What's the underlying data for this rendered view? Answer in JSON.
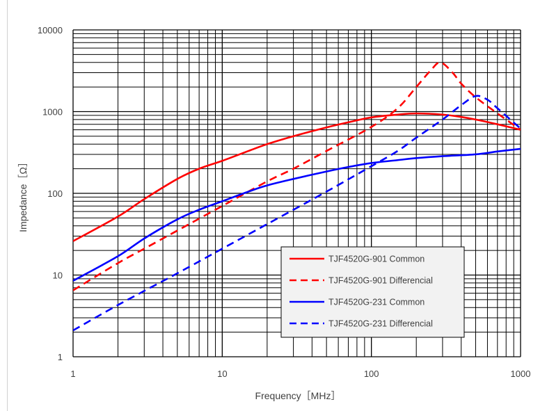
{
  "chart_data": {
    "type": "line",
    "xscale": "log",
    "yscale": "log",
    "xlim": [
      1,
      1000
    ],
    "ylim": [
      1,
      10000
    ],
    "xlabel": "Frequency［MHz］",
    "ylabel": "Impedance［Ω］",
    "x_ticks": [
      "1",
      "10",
      "100",
      "1000"
    ],
    "y_ticks": [
      "1",
      "10",
      "100",
      "1000",
      "10000"
    ],
    "grid": true,
    "legend_position": "bottom-right",
    "series": [
      {
        "name": "TJF4520G-901 Common",
        "color": "#ff0000",
        "dash": "solid",
        "points": [
          [
            1,
            26
          ],
          [
            2,
            52
          ],
          [
            3,
            85
          ],
          [
            5,
            150
          ],
          [
            7,
            200
          ],
          [
            10,
            250
          ],
          [
            15,
            330
          ],
          [
            20,
            400
          ],
          [
            30,
            500
          ],
          [
            50,
            640
          ],
          [
            70,
            740
          ],
          [
            100,
            850
          ],
          [
            150,
            920
          ],
          [
            200,
            950
          ],
          [
            300,
            920
          ],
          [
            400,
            860
          ],
          [
            500,
            800
          ],
          [
            700,
            700
          ],
          [
            1000,
            600
          ]
        ]
      },
      {
        "name": "TJF4520G-901 Differencial",
        "color": "#ff0000",
        "dash": "dashed",
        "points": [
          [
            1,
            6.5
          ],
          [
            2,
            14
          ],
          [
            3,
            21
          ],
          [
            5,
            35
          ],
          [
            10,
            70
          ],
          [
            20,
            140
          ],
          [
            30,
            200
          ],
          [
            50,
            330
          ],
          [
            100,
            650
          ],
          [
            150,
            1100
          ],
          [
            200,
            2000
          ],
          [
            250,
            3200
          ],
          [
            290,
            4000
          ],
          [
            350,
            3000
          ],
          [
            400,
            2200
          ],
          [
            500,
            1500
          ],
          [
            700,
            950
          ],
          [
            1000,
            600
          ]
        ]
      },
      {
        "name": "TJF4520G-231 Common",
        "color": "#0000ff",
        "dash": "solid",
        "points": [
          [
            1,
            8.5
          ],
          [
            2,
            17
          ],
          [
            3,
            28
          ],
          [
            5,
            48
          ],
          [
            7,
            63
          ],
          [
            10,
            80
          ],
          [
            15,
            105
          ],
          [
            20,
            125
          ],
          [
            30,
            150
          ],
          [
            50,
            185
          ],
          [
            70,
            210
          ],
          [
            100,
            235
          ],
          [
            150,
            255
          ],
          [
            200,
            270
          ],
          [
            300,
            285
          ],
          [
            500,
            300
          ],
          [
            700,
            325
          ],
          [
            1000,
            350
          ]
        ]
      },
      {
        "name": "TJF4520G-231 Differencial",
        "color": "#0000ff",
        "dash": "dashed",
        "points": [
          [
            1,
            2.1
          ],
          [
            2,
            4.3
          ],
          [
            5,
            10.5
          ],
          [
            10,
            21
          ],
          [
            20,
            42
          ],
          [
            50,
            105
          ],
          [
            100,
            215
          ],
          [
            150,
            330
          ],
          [
            200,
            480
          ],
          [
            300,
            800
          ],
          [
            400,
            1200
          ],
          [
            500,
            1550
          ],
          [
            600,
            1400
          ],
          [
            700,
            1100
          ],
          [
            1000,
            620
          ]
        ]
      }
    ]
  }
}
